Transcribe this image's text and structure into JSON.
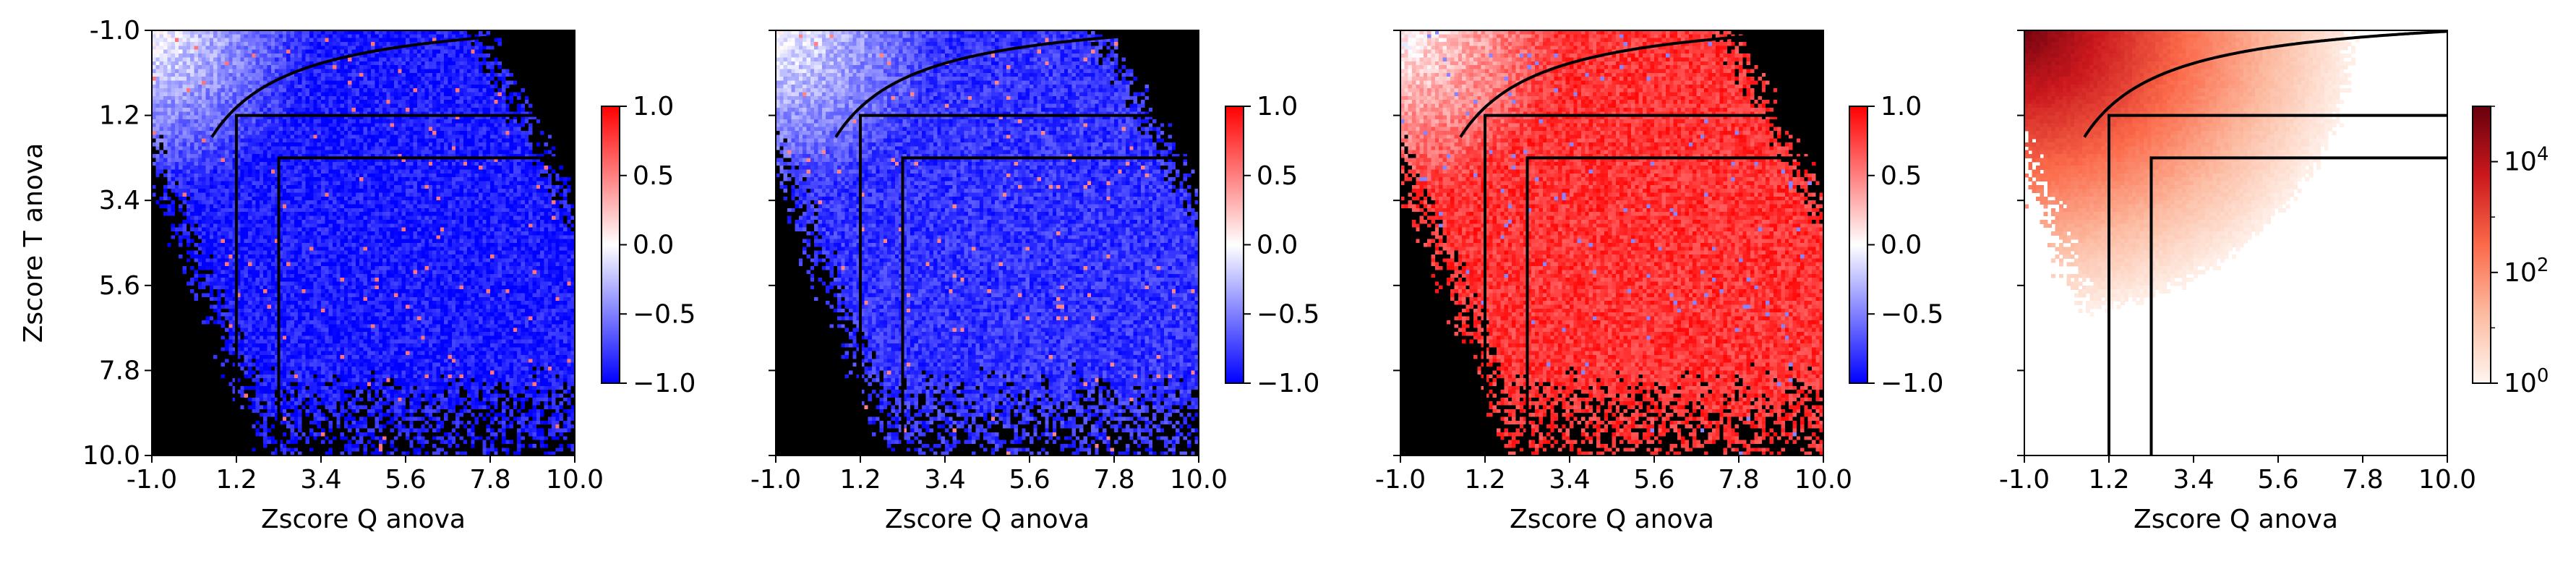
{
  "chart_data": [
    {
      "type": "heatmap",
      "panel": 1,
      "xlabel": "Zscore Q anova",
      "ylabel": "Zscore T anova",
      "xlim": [
        -1.0,
        10.0
      ],
      "ylim": [
        10.0,
        -1.0
      ],
      "x_ticks": [
        "-1.0",
        "1.2",
        "3.4",
        "5.6",
        "7.8",
        "10.0"
      ],
      "y_ticks": [
        "-1.0",
        "1.2",
        "3.4",
        "5.6",
        "7.8",
        "10.0"
      ],
      "colormap": "bwr",
      "colorbar": {
        "scale": "linear",
        "range": [
          -1.0,
          1.0
        ],
        "ticks": [
          "1.0",
          "0.5",
          "0.0",
          "−0.5",
          "−1.0"
        ]
      },
      "thresholds": [
        1.2,
        2.3
      ],
      "overlay_curve": "x*y = const",
      "dominant_value": -0.9,
      "empty_region_color": "#000000"
    },
    {
      "type": "heatmap",
      "panel": 2,
      "xlabel": "Zscore Q anova",
      "xlim": [
        -1.0,
        10.0
      ],
      "ylim": [
        10.0,
        -1.0
      ],
      "x_ticks": [
        "-1.0",
        "1.2",
        "3.4",
        "5.6",
        "7.8",
        "10.0"
      ],
      "colormap": "bwr",
      "colorbar": {
        "scale": "linear",
        "range": [
          -1.0,
          1.0
        ],
        "ticks": [
          "1.0",
          "0.5",
          "0.0",
          "−0.5",
          "−1.0"
        ]
      },
      "thresholds": [
        1.2,
        2.3
      ],
      "overlay_curve": "x*y = const",
      "dominant_value": -0.8,
      "empty_region_color": "#000000"
    },
    {
      "type": "heatmap",
      "panel": 3,
      "xlabel": "Zscore Q anova",
      "xlim": [
        -1.0,
        10.0
      ],
      "ylim": [
        10.0,
        -1.0
      ],
      "x_ticks": [
        "-1.0",
        "1.2",
        "3.4",
        "5.6",
        "7.8",
        "10.0"
      ],
      "colormap": "bwr",
      "colorbar": {
        "scale": "linear",
        "range": [
          -1.0,
          1.0
        ],
        "ticks": [
          "1.0",
          "0.5",
          "0.0",
          "−0.5",
          "−1.0"
        ]
      },
      "thresholds": [
        1.2,
        2.3
      ],
      "overlay_curve": "x*y = const",
      "dominant_value": 0.8,
      "empty_region_color": "#000000"
    },
    {
      "type": "heatmap",
      "panel": 4,
      "xlabel": "Zscore Q anova",
      "xlim": [
        -1.0,
        10.0
      ],
      "ylim": [
        10.0,
        -1.0
      ],
      "x_ticks": [
        "-1.0",
        "1.2",
        "3.4",
        "5.6",
        "7.8",
        "10.0"
      ],
      "colormap": "Reds",
      "colorbar": {
        "scale": "log",
        "range": [
          1,
          100000
        ],
        "ticks": [
          "10",
          "10",
          "10"
        ],
        "tick_exponents": [
          "4",
          "2",
          "0"
        ]
      },
      "thresholds": [
        1.2,
        2.3
      ],
      "overlay_curve": "x*y = const",
      "peak_location": [
        -0.5,
        -0.5
      ],
      "empty_region_color": "#ffffff"
    }
  ]
}
